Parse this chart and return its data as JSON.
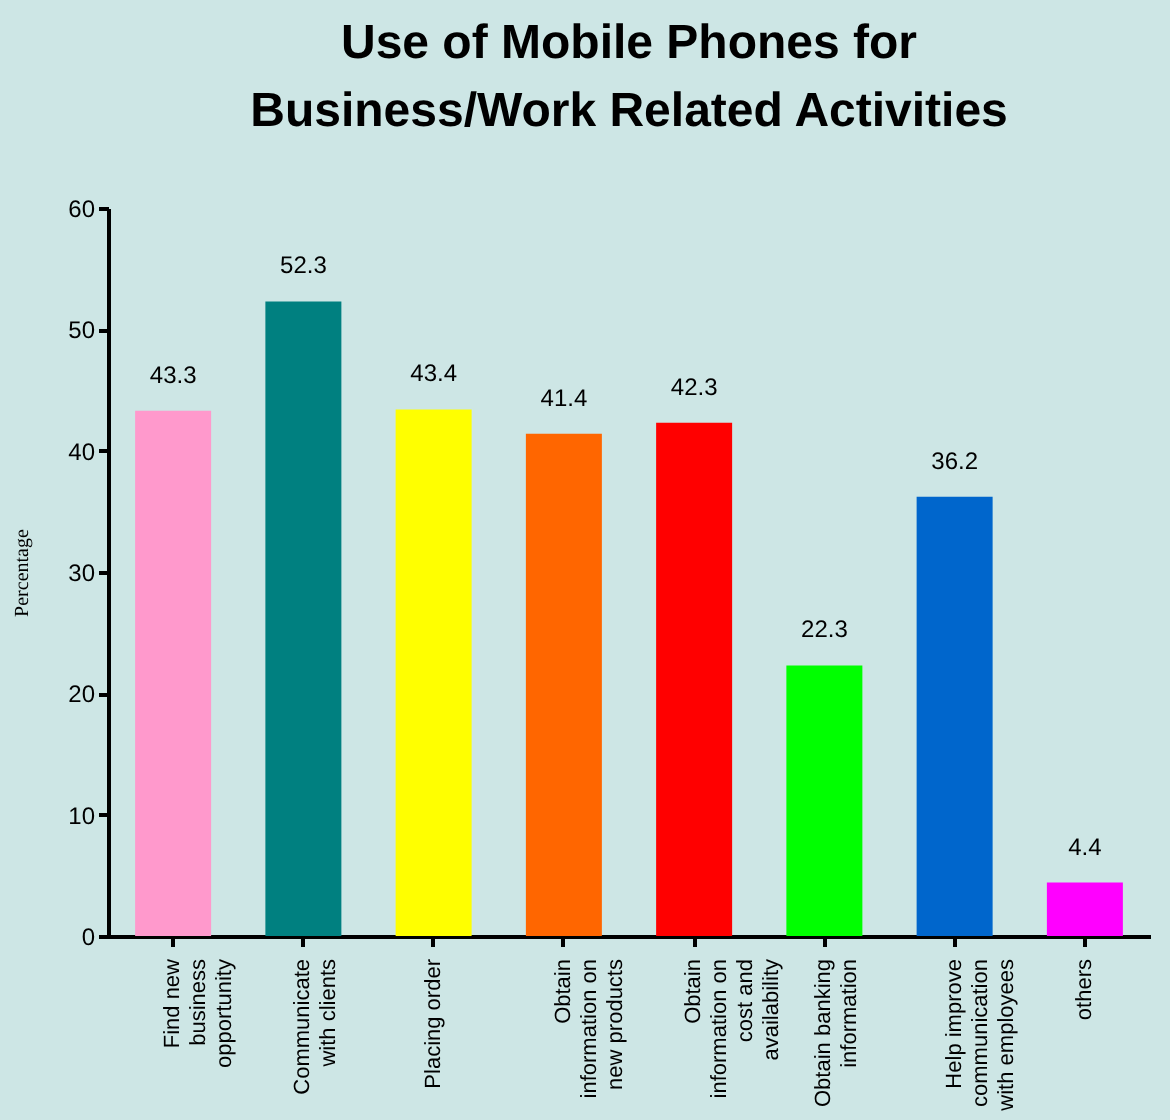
{
  "chart_data": {
    "type": "bar",
    "title": "Use of Mobile Phones for Business/Work Related Activities",
    "ylabel": "Percentage",
    "categories": [
      "Find new business opportunity",
      "Communicate with clients",
      "Placing order",
      "Obtain information on new products",
      "Obtain information on cost and availability",
      "Obtain banking information",
      "Help improve communication with employees",
      "others"
    ],
    "values": [
      43.3,
      52.3,
      43.4,
      41.4,
      42.3,
      22.3,
      36.2,
      4.4
    ],
    "colors": [
      "#ff99cc",
      "#008080",
      "#ffff00",
      "#ff6600",
      "#ff0000",
      "#00ff00",
      "#0066cc",
      "#ff00ff"
    ],
    "ylim": [
      0,
      60
    ],
    "yticks": [
      0,
      10,
      20,
      30,
      40,
      50,
      60
    ],
    "data_labels": true,
    "grid": false,
    "legend": false
  }
}
